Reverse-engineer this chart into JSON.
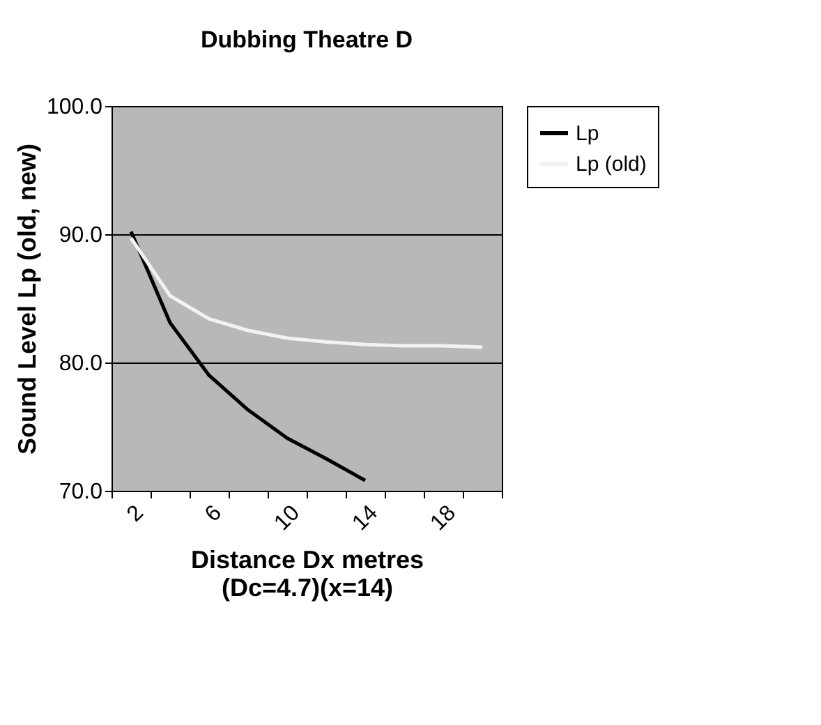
{
  "chart_data": {
    "type": "line",
    "title": "Dubbing Theatre D",
    "xlabel": "Distance Dx metres\n(Dc=4.7)(x=14)",
    "ylabel": "Sound Level Lp (old, new)",
    "categories": [
      "2",
      null,
      "6",
      null,
      "10",
      null,
      "14",
      null,
      "18",
      null
    ],
    "series": [
      {
        "name": "Lp",
        "color": "#000000",
        "values": [
          90.2,
          83.1,
          79.0,
          76.3,
          74.1,
          72.5,
          70.8,
          null,
          null,
          null
        ]
      },
      {
        "name": "Lp (old)",
        "color": "#f2f2f2",
        "values": [
          89.7,
          85.2,
          83.4,
          82.5,
          81.9,
          81.6,
          81.4,
          81.3,
          81.3,
          81.2
        ]
      }
    ],
    "ylim": [
      70,
      100
    ],
    "yticks": [
      {
        "value": 70,
        "label": "70.0"
      },
      {
        "value": 80,
        "label": "80.0"
      },
      {
        "value": 90,
        "label": "90.0"
      },
      {
        "value": 100,
        "label": "100.0"
      }
    ],
    "grid": "y",
    "legend": "right",
    "marker": "none",
    "line_style": "solid"
  }
}
